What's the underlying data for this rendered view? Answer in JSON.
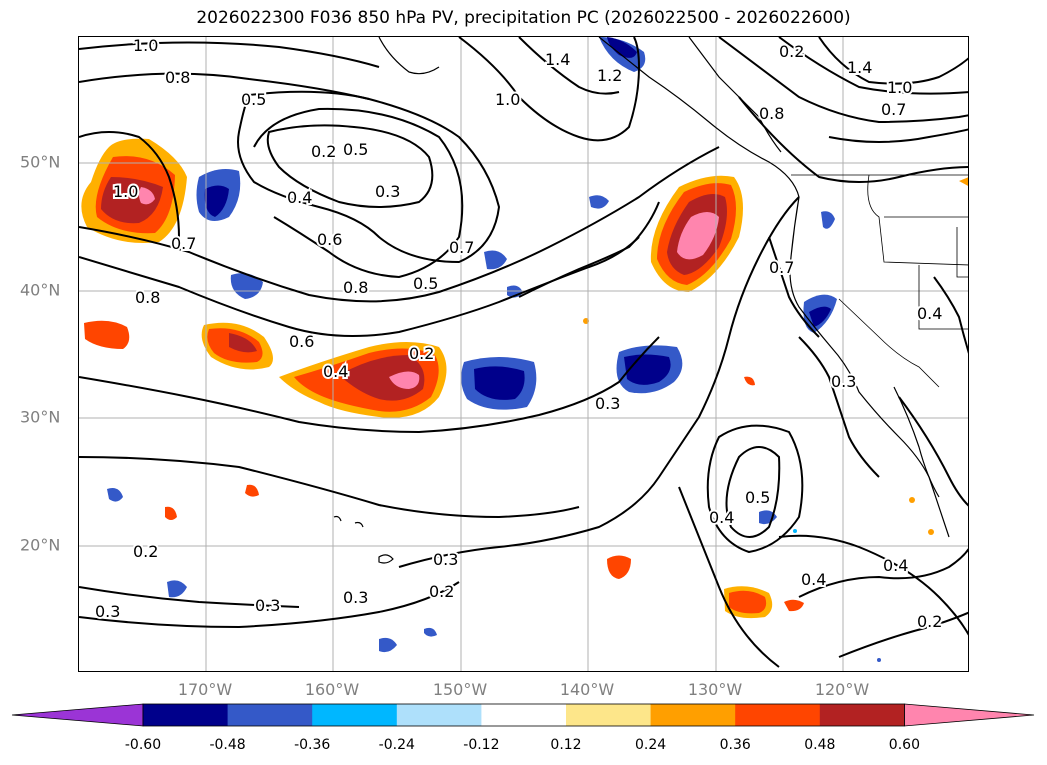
{
  "title": "2026022300 F036 850 hPa PV, precipitation PC (2026022500 - 2026022600)",
  "lon_labels": [
    "170°W",
    "160°W",
    "150°W",
    "140°W",
    "130°W",
    "120°W"
  ],
  "lat_labels": [
    "50°N",
    "40°N",
    "30°N",
    "20°N"
  ],
  "colorbar": {
    "ticks": [
      "-0.60",
      "-0.48",
      "-0.36",
      "-0.24",
      "-0.12",
      "0.12",
      "0.24",
      "0.36",
      "0.48",
      "0.60"
    ],
    "colors": [
      "#9b34d6",
      "#00008b",
      "#3459c8",
      "#00b7ff",
      "#aee0fb",
      "#ffffff",
      "#fde68a",
      "#ff9f00",
      "#ff4500",
      "#b22222",
      "#ff85ae"
    ]
  },
  "contour_labels": [
    "1.0",
    "0.8",
    "0.5",
    "0.2",
    "0.4",
    "0.3",
    "0.6",
    "0.7",
    "0.8",
    "0.5",
    "0.6",
    "0.4",
    "0.2",
    "1.4",
    "1.0",
    "1.2",
    "0.8",
    "1.4",
    "1.0",
    "0.7",
    "0.7",
    "0.4",
    "0.3",
    "0.3",
    "0.5",
    "0.4",
    "0.4",
    "0.4",
    "0.2",
    "0.3",
    "0.3",
    "0.3",
    "0.2",
    "0.2",
    "0.3",
    "1.0",
    "0.7",
    "0.8",
    "0.5",
    "0.2"
  ]
}
